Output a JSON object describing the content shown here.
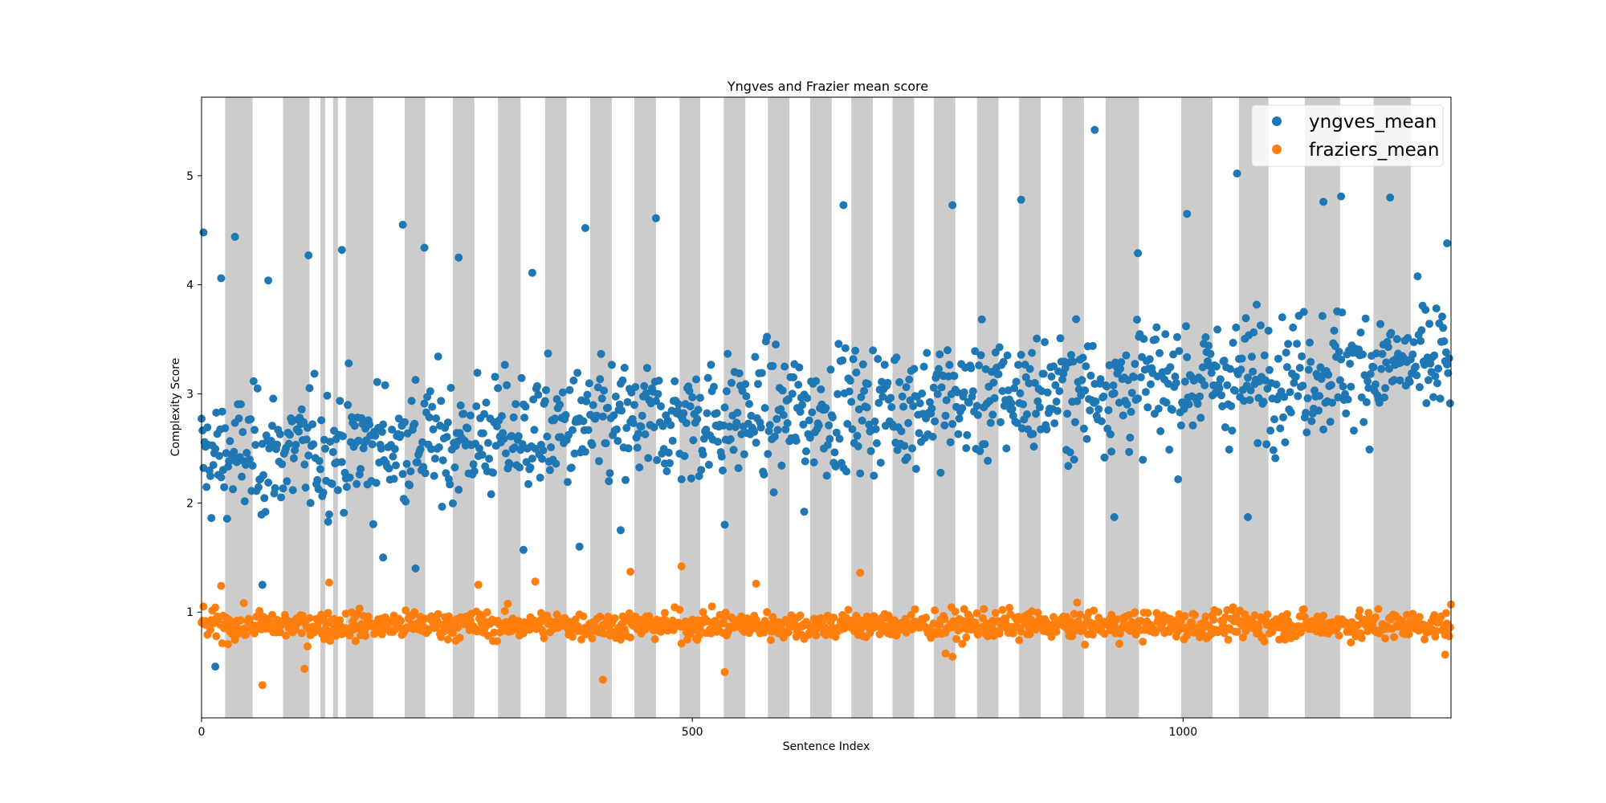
{
  "chart_data": {
    "type": "scatter",
    "title": "Yngves and Frazier mean score",
    "xlabel": "Sentence Index",
    "ylabel": "Complexity Score",
    "xlim": [
      0,
      1273
    ],
    "ylim": [
      0.03,
      5.72
    ],
    "x_ticks": [
      0,
      500,
      1000
    ],
    "y_ticks": [
      1,
      2,
      3,
      4,
      5
    ],
    "grid": false,
    "legend_position": "top-right",
    "colors": {
      "yngves_mean": "#1f77b4",
      "fraziers_mean": "#ff7f0e",
      "band": "#cccccc"
    },
    "shaded_x_ranges": [
      [
        24,
        52
      ],
      [
        83,
        110
      ],
      [
        121,
        126
      ],
      [
        134,
        139
      ],
      [
        147,
        175
      ],
      [
        207,
        228
      ],
      [
        256,
        278
      ],
      [
        302,
        325
      ],
      [
        350,
        372
      ],
      [
        396,
        418
      ],
      [
        441,
        463
      ],
      [
        487,
        508
      ],
      [
        532,
        554
      ],
      [
        577,
        599
      ],
      [
        620,
        642
      ],
      [
        662,
        684
      ],
      [
        704,
        726
      ],
      [
        746,
        768
      ],
      [
        790,
        812
      ],
      [
        833,
        855
      ],
      [
        877,
        899
      ],
      [
        921,
        955
      ],
      [
        998,
        1030
      ],
      [
        1057,
        1087
      ],
      [
        1124,
        1160
      ],
      [
        1194,
        1232
      ]
    ],
    "series": [
      {
        "name": "yngves_mean",
        "summary": {
          "count": 1273,
          "mean_start": 2.4,
          "mean_end": 3.3,
          "spread": 0.55
        },
        "highlights": [
          [
            2,
            4.48
          ],
          [
            20,
            4.06
          ],
          [
            34,
            4.44
          ],
          [
            68,
            4.04
          ],
          [
            109,
            4.27
          ],
          [
            143,
            4.32
          ],
          [
            205,
            4.55
          ],
          [
            227,
            4.34
          ],
          [
            262,
            4.25
          ],
          [
            337,
            4.11
          ],
          [
            391,
            4.52
          ],
          [
            463,
            4.61
          ],
          [
            654,
            4.73
          ],
          [
            765,
            4.73
          ],
          [
            835,
            4.78
          ],
          [
            910,
            5.42
          ],
          [
            954,
            4.29
          ],
          [
            1004,
            4.65
          ],
          [
            1055,
            5.02
          ],
          [
            1143,
            4.76
          ],
          [
            1161,
            4.81
          ],
          [
            1211,
            4.8
          ],
          [
            1269,
            4.38
          ],
          [
            14,
            0.5
          ],
          [
            62,
            1.25
          ],
          [
            185,
            1.5
          ],
          [
            218,
            1.4
          ],
          [
            328,
            1.57
          ],
          [
            385,
            1.6
          ],
          [
            427,
            1.75
          ],
          [
            533,
            1.8
          ],
          [
            614,
            1.92
          ],
          [
            930,
            1.87
          ],
          [
            1066,
            1.87
          ]
        ]
      },
      {
        "name": "fraziers_mean",
        "summary": {
          "count": 1273,
          "mean": 0.88,
          "spread": 0.14
        },
        "highlights": [
          [
            62,
            0.33
          ],
          [
            105,
            0.48
          ],
          [
            20,
            1.24
          ],
          [
            130,
            1.27
          ],
          [
            282,
            1.25
          ],
          [
            340,
            1.28
          ],
          [
            409,
            0.38
          ],
          [
            437,
            1.37
          ],
          [
            489,
            1.42
          ],
          [
            533,
            0.45
          ],
          [
            565,
            1.26
          ],
          [
            671,
            1.36
          ],
          [
            765,
            0.59
          ],
          [
            758,
            0.62
          ],
          [
            1267,
            0.61
          ],
          [
            1273,
            1.07
          ]
        ]
      }
    ]
  }
}
